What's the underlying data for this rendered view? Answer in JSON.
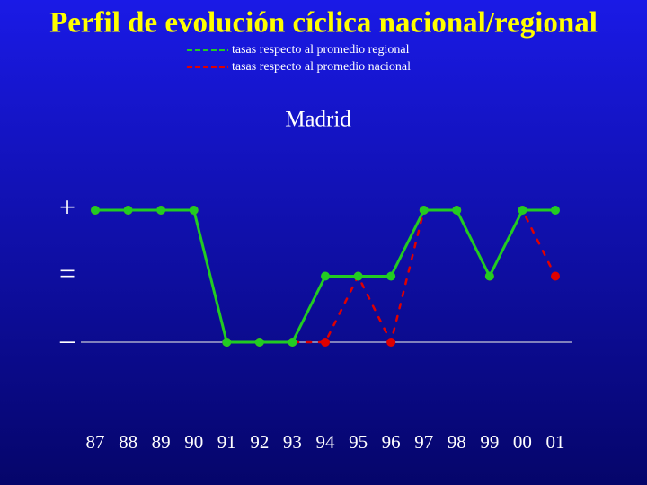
{
  "chart_data": {
    "type": "line",
    "title": "Perfil de evolución cíclica nacional/regional",
    "subtitle": "Madrid",
    "categories": [
      "87",
      "88",
      "89",
      "90",
      "91",
      "92",
      "93",
      "94",
      "95",
      "96",
      "97",
      "98",
      "99",
      "00",
      "01"
    ],
    "series": [
      {
        "name": "tasas respecto al promedio nacional",
        "color": "#e00000",
        "dashed": true,
        "values": [
          1,
          1,
          1,
          1,
          -1,
          -1,
          -1,
          -1,
          0,
          -1,
          1,
          1,
          0,
          1,
          0
        ]
      },
      {
        "name": "tasas respecto al promedio regional",
        "color": "#22cc22",
        "dashed": false,
        "values": [
          1,
          1,
          1,
          1,
          -1,
          -1,
          -1,
          0,
          0,
          0,
          1,
          1,
          0,
          1,
          1
        ]
      }
    ],
    "ylim": [
      -1,
      1
    ],
    "yticks": [
      {
        "value": 1,
        "label": "+"
      },
      {
        "value": 0,
        "label": "="
      },
      {
        "value": -1,
        "label": "–"
      }
    ],
    "legend": "top"
  }
}
